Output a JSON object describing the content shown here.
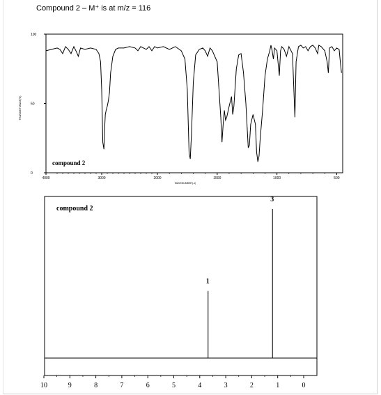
{
  "page": {
    "heading": "Compound 2 – M⁺ is at m/z = 116"
  },
  "chart_data": [
    {
      "type": "line",
      "name": "ir-spectrum",
      "label": "compound 2",
      "xlabel": "WAVENUMBER(-1)",
      "ylabel": "TRANSMITTANCE(%)",
      "xlim": [
        4000,
        450
      ],
      "ylim": [
        0,
        100
      ],
      "x_ticks": [
        "4000",
        "3000",
        "2000",
        "1500",
        "1000",
        "500"
      ],
      "y_ticks": [
        "100",
        "50",
        "0"
      ],
      "grid": false,
      "points": [
        [
          4000,
          88
        ],
        [
          3900,
          89
        ],
        [
          3800,
          90
        ],
        [
          3750,
          89
        ],
        [
          3700,
          86
        ],
        [
          3650,
          91
        ],
        [
          3600,
          89
        ],
        [
          3550,
          86
        ],
        [
          3500,
          91
        ],
        [
          3450,
          87
        ],
        [
          3420,
          84
        ],
        [
          3380,
          90
        ],
        [
          3300,
          89
        ],
        [
          3200,
          90
        ],
        [
          3100,
          89
        ],
        [
          3050,
          86
        ],
        [
          3020,
          80
        ],
        [
          3000,
          60
        ],
        [
          2980,
          22
        ],
        [
          2960,
          17
        ],
        [
          2950,
          30
        ],
        [
          2935,
          42
        ],
        [
          2920,
          45
        ],
        [
          2900,
          48
        ],
        [
          2880,
          52
        ],
        [
          2860,
          58
        ],
        [
          2840,
          72
        ],
        [
          2800,
          84
        ],
        [
          2750,
          89
        ],
        [
          2700,
          90
        ],
        [
          2600,
          90
        ],
        [
          2500,
          91
        ],
        [
          2400,
          90
        ],
        [
          2350,
          88
        ],
        [
          2300,
          91
        ],
        [
          2200,
          89
        ],
        [
          2150,
          91
        ],
        [
          2100,
          88
        ],
        [
          2050,
          91
        ],
        [
          2000,
          90
        ],
        [
          1950,
          91
        ],
        [
          1900,
          89
        ],
        [
          1850,
          91
        ],
        [
          1800,
          88
        ],
        [
          1770,
          82
        ],
        [
          1750,
          60
        ],
        [
          1740,
          30
        ],
        [
          1735,
          14
        ],
        [
          1725,
          10
        ],
        [
          1715,
          28
        ],
        [
          1700,
          65
        ],
        [
          1680,
          85
        ],
        [
          1650,
          89
        ],
        [
          1620,
          90
        ],
        [
          1600,
          88
        ],
        [
          1580,
          84
        ],
        [
          1560,
          90
        ],
        [
          1540,
          88
        ],
        [
          1500,
          80
        ],
        [
          1470,
          40
        ],
        [
          1460,
          22
        ],
        [
          1450,
          35
        ],
        [
          1440,
          45
        ],
        [
          1430,
          38
        ],
        [
          1420,
          40
        ],
        [
          1400,
          48
        ],
        [
          1380,
          55
        ],
        [
          1370,
          42
        ],
        [
          1360,
          48
        ],
        [
          1340,
          75
        ],
        [
          1320,
          85
        ],
        [
          1300,
          86
        ],
        [
          1280,
          72
        ],
        [
          1260,
          50
        ],
        [
          1240,
          18
        ],
        [
          1230,
          20
        ],
        [
          1220,
          35
        ],
        [
          1200,
          42
        ],
        [
          1180,
          35
        ],
        [
          1170,
          15
        ],
        [
          1160,
          8
        ],
        [
          1150,
          12
        ],
        [
          1140,
          25
        ],
        [
          1120,
          45
        ],
        [
          1100,
          70
        ],
        [
          1080,
          82
        ],
        [
          1060,
          88
        ],
        [
          1050,
          92
        ],
        [
          1040,
          88
        ],
        [
          1030,
          82
        ],
        [
          1020,
          90
        ],
        [
          1000,
          88
        ],
        [
          980,
          70
        ],
        [
          970,
          88
        ],
        [
          960,
          91
        ],
        [
          940,
          89
        ],
        [
          920,
          84
        ],
        [
          900,
          91
        ],
        [
          870,
          86
        ],
        [
          850,
          40
        ],
        [
          840,
          80
        ],
        [
          820,
          91
        ],
        [
          800,
          92
        ],
        [
          780,
          90
        ],
        [
          760,
          91
        ],
        [
          740,
          88
        ],
        [
          720,
          91
        ],
        [
          700,
          92
        ],
        [
          680,
          90
        ],
        [
          660,
          86
        ],
        [
          650,
          92
        ],
        [
          630,
          91
        ],
        [
          600,
          88
        ],
        [
          580,
          80
        ],
        [
          570,
          72
        ],
        [
          560,
          90
        ],
        [
          540,
          91
        ],
        [
          520,
          88
        ],
        [
          500,
          90
        ],
        [
          480,
          89
        ],
        [
          470,
          80
        ],
        [
          460,
          72
        ]
      ]
    },
    {
      "type": "bar",
      "name": "nmr-spectrum",
      "label": "compound 2",
      "xlim": [
        10,
        0
      ],
      "x_ticks": [
        "10",
        "9",
        "8",
        "7",
        "6",
        "5",
        "4",
        "3",
        "2",
        "1",
        "0"
      ],
      "peaks": [
        {
          "ppm": 3.68,
          "height": 0.45,
          "label": "1"
        },
        {
          "ppm": 1.2,
          "height": 1.0,
          "label": "3"
        }
      ]
    }
  ]
}
